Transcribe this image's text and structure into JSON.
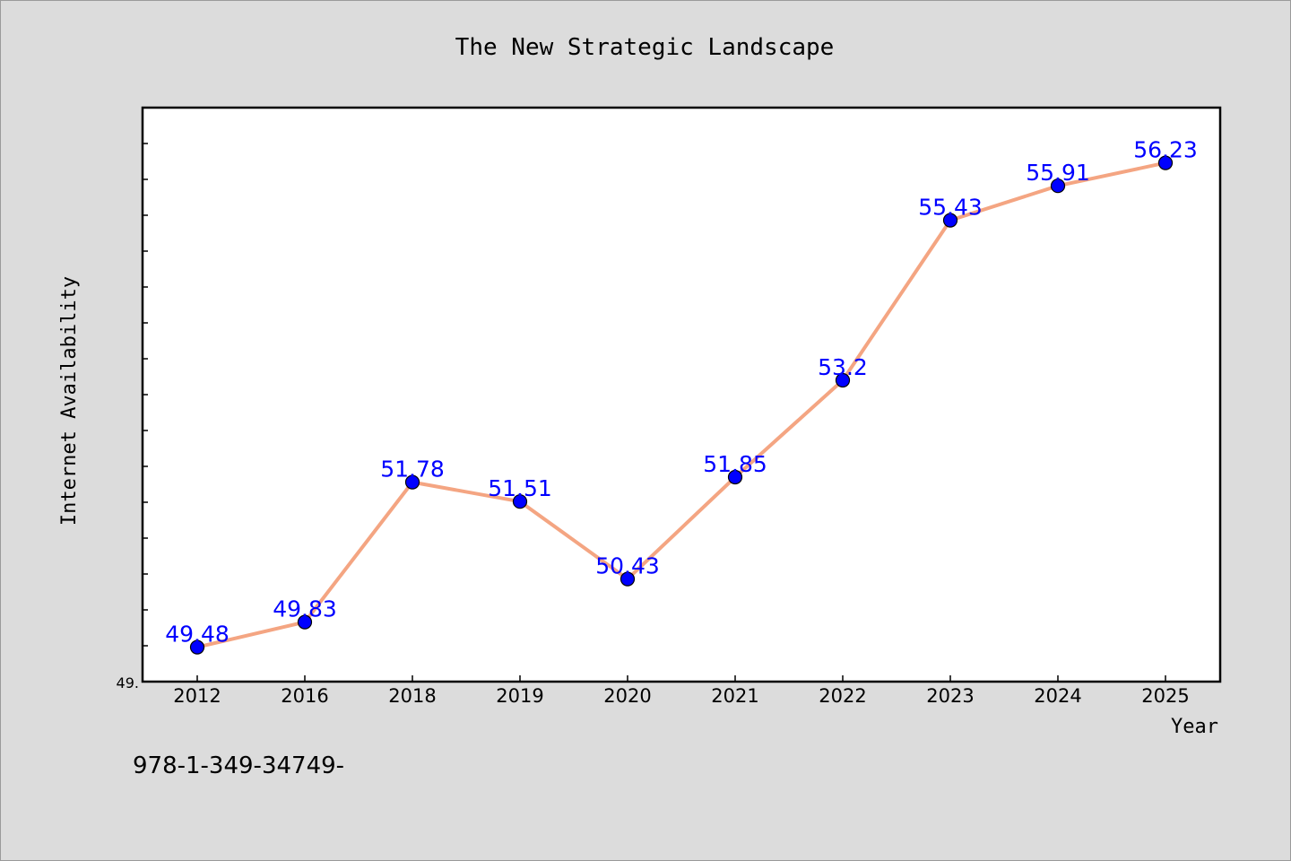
{
  "chart_data": {
    "type": "line",
    "title": "The New Strategic Landscape",
    "xlabel": "Year",
    "ylabel": "Internet Availability",
    "categories": [
      "2012",
      "2016",
      "2018",
      "2019",
      "2020",
      "2021",
      "2022",
      "2023",
      "2024",
      "2025"
    ],
    "values": [
      49.48,
      49.83,
      51.78,
      51.51,
      50.43,
      51.85,
      53.2,
      55.43,
      55.91,
      56.23
    ],
    "data_labels": [
      "49.48",
      "49.83",
      "51.78",
      "51.51",
      "50.43",
      "51.85",
      "53.2",
      "55.43",
      "55.91",
      "56.23"
    ],
    "y_tick_label": "49.",
    "ylim": [
      49.0,
      57.0
    ],
    "grid": false,
    "legend": "none",
    "colors": {
      "line": "#f4a582",
      "marker": "#0000ff",
      "data_label": "#0000ff",
      "plot_background": "#ffffff",
      "figure_background": "#dcdcdc"
    }
  },
  "footer_note": "978-1-349-34749-"
}
